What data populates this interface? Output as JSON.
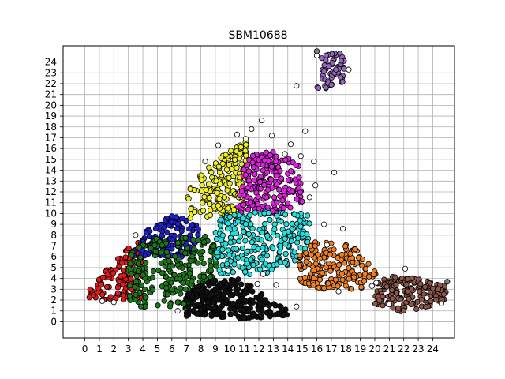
{
  "chart_data": {
    "type": "scatter",
    "title": "SBM10688",
    "xlabel": "",
    "ylabel": "",
    "xlim": [
      -1.5,
      25.5
    ],
    "ylim": [
      -1.5,
      25.5
    ],
    "x_ticks": [
      "0",
      "1",
      "2",
      "3",
      "4",
      "5",
      "6",
      "7",
      "8",
      "9",
      "10",
      "11",
      "12",
      "13",
      "14",
      "15",
      "16",
      "17",
      "18",
      "19",
      "20",
      "21",
      "22",
      "23",
      "24"
    ],
    "y_ticks": [
      "0",
      "1",
      "2",
      "3",
      "4",
      "5",
      "6",
      "7",
      "8",
      "9",
      "10",
      "11",
      "12",
      "13",
      "14",
      "15",
      "16",
      "17",
      "18",
      "19",
      "20",
      "21",
      "22",
      "23",
      "24"
    ],
    "grid": true,
    "legend": "none",
    "marker": "circle with black edge",
    "clusters": [
      {
        "color": "#e31a1c",
        "region": "lower-left, x 0–4, y 1.5–6.5"
      },
      {
        "color": "#1f1fd0",
        "region": "x 3–8, y 6–9.5"
      },
      {
        "color": "#1a7a1a",
        "region": "x 3–9, y 1–8"
      },
      {
        "color": "#111111",
        "region": "x 7–14, y 0.5–4"
      },
      {
        "color": "#f0f020",
        "region": "x 7–11, y 9.5–17"
      },
      {
        "color": "#e020e0",
        "region": "x 11–15, y 10–16"
      },
      {
        "color": "#20e0e0",
        "region": "x 9–15, y 4–10"
      },
      {
        "color": "#f07f1f",
        "region": "x 15–20, y 3–7"
      },
      {
        "color": "#8c564b",
        "region": "x 20–25, y 1–4"
      },
      {
        "color": "#9467bd",
        "region": "x 16–18, y 21.5–25"
      },
      {
        "color": "#ffffff",
        "region": "scattered unassigned points around clusters"
      }
    ]
  }
}
